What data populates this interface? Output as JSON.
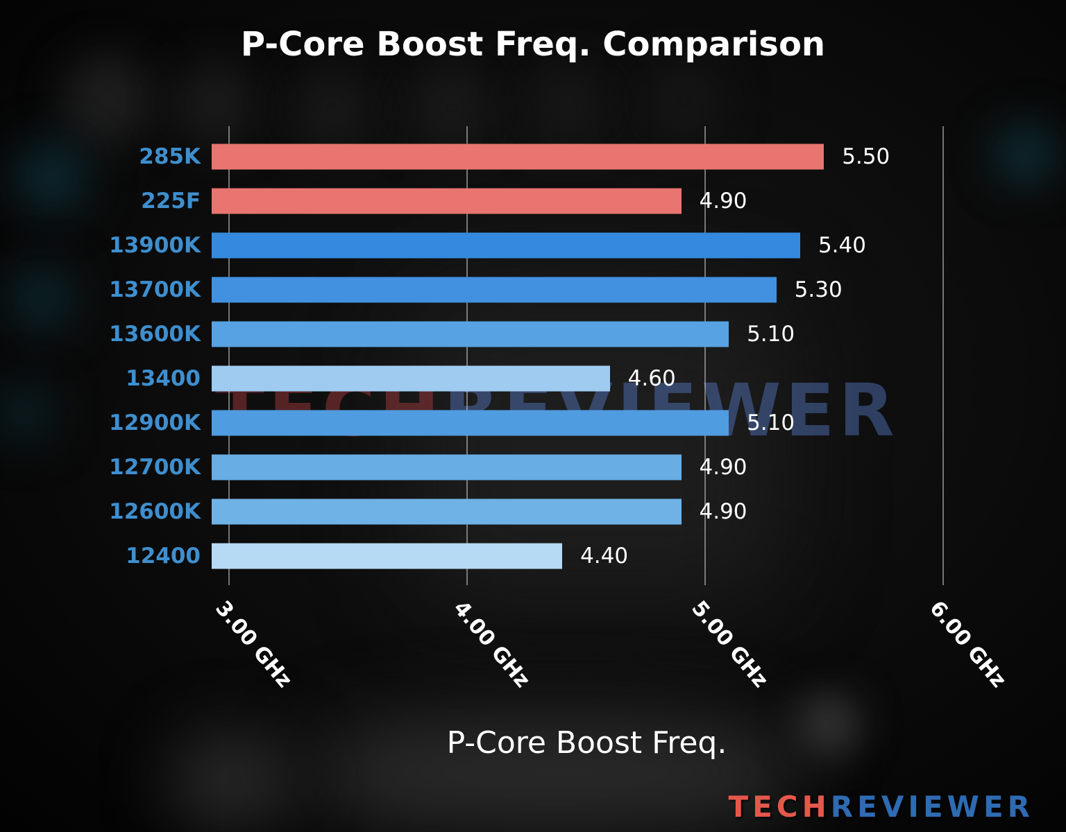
{
  "chart_data": {
    "type": "bar",
    "orientation": "horizontal",
    "title": "P-Core Boost Freq. Comparison",
    "xlabel": "P-Core Boost Freq.",
    "ylabel": "",
    "unit": "GHz",
    "categories": [
      "285K",
      "225F",
      "13900K",
      "13700K",
      "13600K",
      "13400",
      "12900K",
      "12700K",
      "12600K",
      "12400"
    ],
    "values": [
      5.5,
      4.9,
      5.4,
      5.3,
      5.1,
      4.6,
      5.1,
      4.9,
      4.9,
      4.4
    ],
    "value_labels": [
      "5.50",
      "4.90",
      "5.40",
      "5.30",
      "5.10",
      "4.60",
      "5.10",
      "4.90",
      "4.90",
      "4.40"
    ],
    "bar_colors": [
      "#e97570",
      "#e97570",
      "#338ade",
      "#4191e0",
      "#57a2e3",
      "#a0cbf0",
      "#4f9ce0",
      "#68ade4",
      "#6fb2e6",
      "#b7daf4"
    ],
    "category_color": "#3e8fcf",
    "xticks": [
      {
        "value": 3,
        "label": "3.00 GHz"
      },
      {
        "value": 4,
        "label": "4.00 GHz"
      },
      {
        "value": 5,
        "label": "5.00 GHz"
      },
      {
        "value": 6,
        "label": "6.00 GHz"
      }
    ],
    "xlim": [
      2.927,
      6.383
    ],
    "grid": true,
    "legend": false
  },
  "watermark": {
    "tech": "TECH",
    "reviewer": "REVIEWER"
  },
  "logo": {
    "tech": "TECH",
    "reviewer": "REVIEWER",
    "tech_color": "#e4584b",
    "reviewer_color": "#2e6bb2"
  }
}
